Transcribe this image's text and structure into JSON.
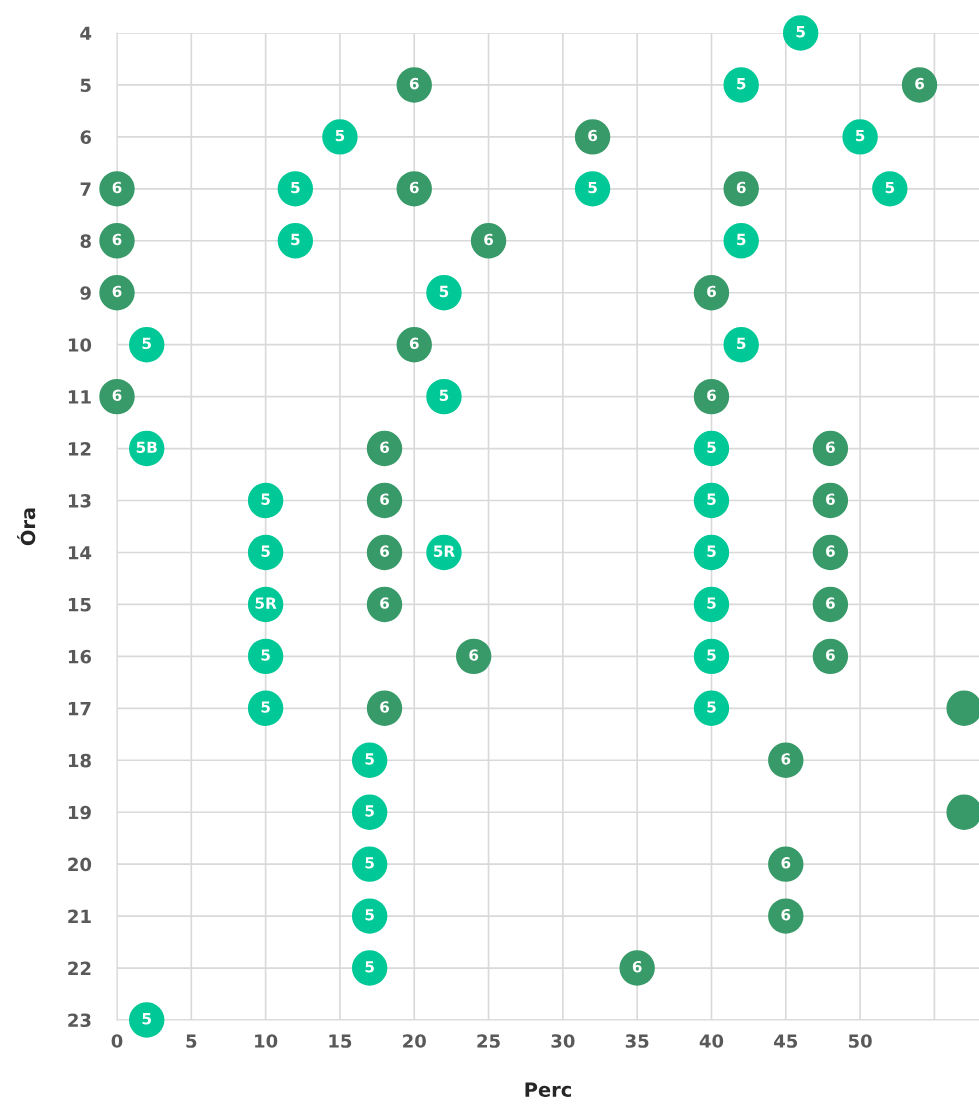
{
  "chart_data": {
    "type": "scatter",
    "xlabel": "Perc",
    "ylabel": "Óra",
    "xlim": [
      0,
      58
    ],
    "ylim": [
      23,
      4
    ],
    "xticks": [
      0,
      5,
      10,
      15,
      20,
      25,
      30,
      35,
      40,
      45,
      50,
      {
        "value": 55,
        "label": null
      }
    ],
    "yticks": [
      4,
      5,
      6,
      7,
      8,
      9,
      10,
      11,
      12,
      13,
      14,
      15,
      16,
      17,
      18,
      19,
      20,
      21,
      22,
      23
    ],
    "grid": true,
    "marker": "circle",
    "series": [
      {
        "color": "#00c896",
        "x": [
          46,
          42,
          15,
          50,
          12,
          32,
          52,
          12,
          42,
          22,
          2,
          42,
          22,
          2,
          40,
          10,
          40,
          10,
          22,
          40,
          10,
          40,
          10,
          40,
          10,
          40,
          17,
          17,
          17,
          17,
          17,
          2
        ],
        "values": [
          4,
          5,
          6,
          6,
          7,
          7,
          7,
          8,
          8,
          9,
          10,
          10,
          11,
          12,
          12,
          13,
          13,
          14,
          14,
          14,
          15,
          15,
          16,
          16,
          17,
          17,
          18,
          19,
          20,
          21,
          22,
          23
        ]
      },
      {
        "color": "#389a68",
        "x": [
          20,
          54,
          32,
          0,
          20,
          42,
          0,
          25,
          0,
          40,
          20,
          0,
          40,
          18,
          48,
          18,
          48,
          18,
          48,
          18,
          48,
          24,
          48,
          18,
          57,
          45,
          57,
          45,
          45,
          35
        ],
        "values": [
          5,
          5,
          6,
          7,
          7,
          7,
          8,
          8,
          9,
          9,
          10,
          11,
          11,
          12,
          12,
          13,
          13,
          14,
          14,
          15,
          15,
          16,
          16,
          17,
          17,
          18,
          19,
          20,
          21,
          22
        ]
      }
    ],
    "annotations": [
      {
        "text": "5",
        "x": 46,
        "y": 4
      },
      {
        "text": "5",
        "x": 42,
        "y": 5
      },
      {
        "text": "5",
        "x": 15,
        "y": 6
      },
      {
        "text": "5",
        "x": 50,
        "y": 6
      },
      {
        "text": "5",
        "x": 12,
        "y": 7
      },
      {
        "text": "5",
        "x": 32,
        "y": 7
      },
      {
        "text": "5",
        "x": 52,
        "y": 7
      },
      {
        "text": "5",
        "x": 12,
        "y": 8
      },
      {
        "text": "5",
        "x": 42,
        "y": 8
      },
      {
        "text": "5",
        "x": 22,
        "y": 9
      },
      {
        "text": "5",
        "x": 2,
        "y": 10
      },
      {
        "text": "5",
        "x": 42,
        "y": 10
      },
      {
        "text": "5",
        "x": 22,
        "y": 11
      },
      {
        "text": "5B",
        "x": 2,
        "y": 12
      },
      {
        "text": "5",
        "x": 40,
        "y": 12
      },
      {
        "text": "5",
        "x": 10,
        "y": 13
      },
      {
        "text": "5",
        "x": 40,
        "y": 13
      },
      {
        "text": "5",
        "x": 10,
        "y": 14
      },
      {
        "text": "5R",
        "x": 22,
        "y": 14
      },
      {
        "text": "5",
        "x": 40,
        "y": 14
      },
      {
        "text": "5R",
        "x": 10,
        "y": 15
      },
      {
        "text": "5",
        "x": 40,
        "y": 15
      },
      {
        "text": "5",
        "x": 10,
        "y": 16
      },
      {
        "text": "5",
        "x": 40,
        "y": 16
      },
      {
        "text": "5",
        "x": 10,
        "y": 17
      },
      {
        "text": "5",
        "x": 40,
        "y": 17
      },
      {
        "text": "5",
        "x": 17,
        "y": 18
      },
      {
        "text": "5",
        "x": 17,
        "y": 19
      },
      {
        "text": "5",
        "x": 17,
        "y": 20
      },
      {
        "text": "5",
        "x": 17,
        "y": 21
      },
      {
        "text": "5",
        "x": 17,
        "y": 22
      },
      {
        "text": "5",
        "x": 2,
        "y": 23
      },
      {
        "text": "6",
        "x": 20,
        "y": 5
      },
      {
        "text": "6",
        "x": 54,
        "y": 5
      },
      {
        "text": "6",
        "x": 32,
        "y": 6
      },
      {
        "text": "6",
        "x": 0,
        "y": 7
      },
      {
        "text": "6",
        "x": 20,
        "y": 7
      },
      {
        "text": "6",
        "x": 42,
        "y": 7
      },
      {
        "text": "6",
        "x": 0,
        "y": 8
      },
      {
        "text": "6",
        "x": 25,
        "y": 8
      },
      {
        "text": "6",
        "x": 0,
        "y": 9
      },
      {
        "text": "6",
        "x": 40,
        "y": 9
      },
      {
        "text": "6",
        "x": 20,
        "y": 10
      },
      {
        "text": "6",
        "x": 0,
        "y": 11
      },
      {
        "text": "6",
        "x": 40,
        "y": 11
      },
      {
        "text": "6",
        "x": 18,
        "y": 12
      },
      {
        "text": "6",
        "x": 48,
        "y": 12
      },
      {
        "text": "6",
        "x": 18,
        "y": 13
      },
      {
        "text": "6",
        "x": 48,
        "y": 13
      },
      {
        "text": "6",
        "x": 18,
        "y": 14
      },
      {
        "text": "6",
        "x": 48,
        "y": 14
      },
      {
        "text": "6",
        "x": 18,
        "y": 15
      },
      {
        "text": "6",
        "x": 48,
        "y": 15
      },
      {
        "text": "6",
        "x": 24,
        "y": 16
      },
      {
        "text": "6",
        "x": 48,
        "y": 16
      },
      {
        "text": "6",
        "x": 18,
        "y": 17
      },
      {
        "text": "6",
        "x": 45,
        "y": 18
      },
      {
        "text": "6",
        "x": 45,
        "y": 20
      },
      {
        "text": "6",
        "x": 45,
        "y": 21
      },
      {
        "text": "6",
        "x": 35,
        "y": 22
      }
    ]
  }
}
